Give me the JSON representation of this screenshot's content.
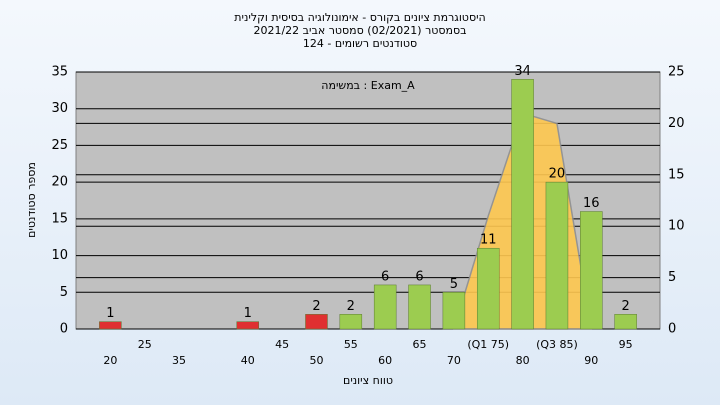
{
  "chart_data": {
    "type": "bar",
    "title": [
      "היסטוגרמת ציונים בקורס - אימונולוגיה בסיסית וקלינית",
      "בסמסטר  (02/2021)  סמסטר אביב 2021/22",
      "סטודנטים רשומים - 124"
    ],
    "annotation": "Exam_A : במשימה",
    "xlabel": "טווח ציונים",
    "ylabel": "מספר סטודנטים",
    "categories": [
      "20",
      "25",
      "35",
      null,
      "40",
      "45",
      "50",
      "55",
      "60",
      "65",
      "70",
      "(Q1 75)",
      "80",
      "(Q3 85)",
      "90",
      "95"
    ],
    "series": [
      {
        "values": [
          1,
          null,
          null,
          null,
          1,
          null,
          2,
          2,
          6,
          6,
          5,
          11,
          34,
          20,
          16,
          2
        ],
        "colors": [
          "#e03030",
          null,
          null,
          null,
          "#e03030",
          null,
          "#e03030",
          "#9ccc50",
          "#9ccc50",
          "#9ccc50",
          "#9ccc50",
          "#9ccc50",
          "#9ccc50",
          "#9ccc50",
          "#9ccc50",
          "#9ccc50"
        ]
      },
      {
        "type": "area",
        "axis": "y2",
        "color": "#ffc850",
        "values": [
          null,
          null,
          null,
          null,
          null,
          null,
          null,
          null,
          null,
          null,
          0,
          11,
          21,
          20,
          0,
          null
        ]
      }
    ],
    "ylim": [
      0,
      35
    ],
    "yticks": [
      0,
      5,
      10,
      15,
      20,
      25,
      30,
      35
    ],
    "y2lim": [
      0,
      25
    ],
    "y2ticks": [
      0,
      5,
      10,
      15,
      20,
      25
    ],
    "grid": true
  }
}
